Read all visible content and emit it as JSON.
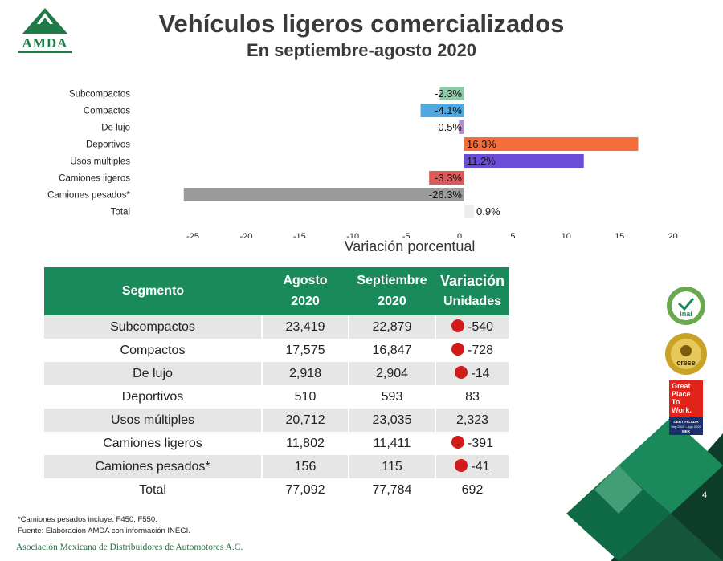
{
  "logo": {
    "text": "AMDA",
    "icon": "mountain-logo-icon",
    "color": "#1f7a47"
  },
  "title": "Vehículos ligeros comercializados",
  "subtitle": "En septiembre-agosto 2020",
  "chart_data": {
    "type": "bar",
    "orientation": "horizontal",
    "categories": [
      "Subcompactos",
      "Compactos",
      "De lujo",
      "Deportivos",
      "Usos múltiples",
      "Camiones ligeros",
      "Camiones pesados*",
      "Total"
    ],
    "values": [
      -2.3,
      -4.1,
      -0.5,
      16.3,
      11.2,
      -3.3,
      -26.3,
      0.9
    ],
    "value_labels": [
      "-2.3%",
      "-4.1%",
      "-0.5%",
      "16.3%",
      "11.2%",
      "-3.3%",
      "-26.3%",
      "0.9%"
    ],
    "colors": [
      "#8ec9a8",
      "#4fa8df",
      "#b48fcf",
      "#f56d3a",
      "#6a4ed8",
      "#dd5a5a",
      "#9a9a9a",
      "#eeeeee"
    ],
    "xlim": [
      -25,
      20
    ],
    "xticks": [
      "-25",
      "-20",
      "-15",
      "-10",
      "-5",
      "0",
      "5",
      "10",
      "15",
      "20"
    ],
    "xtick_values": [
      -25,
      -20,
      -15,
      -10,
      -5,
      0,
      5,
      10,
      15,
      20
    ],
    "xlabel": "Variación porcentual",
    "grid": false,
    "legend": "none"
  },
  "table": {
    "headers": [
      {
        "l1": "Segmento",
        "l2": ""
      },
      {
        "l1": "Agosto",
        "l2": "2020"
      },
      {
        "l1": "Septiembre",
        "l2": "2020"
      },
      {
        "l1": "Variación",
        "l2": "Unidades"
      }
    ],
    "rows": [
      {
        "segment": "Subcompactos",
        "ago": "23,419",
        "sep": "22,879",
        "var": "-540",
        "negative": true
      },
      {
        "segment": "Compactos",
        "ago": "17,575",
        "sep": "16,847",
        "var": "-728",
        "negative": true
      },
      {
        "segment": "De lujo",
        "ago": "2,918",
        "sep": "2,904",
        "var": "-14",
        "negative": true
      },
      {
        "segment": "Deportivos",
        "ago": "510",
        "sep": "593",
        "var": "83",
        "negative": false
      },
      {
        "segment": "Usos múltiples",
        "ago": "20,712",
        "sep": "23,035",
        "var": "2,323",
        "negative": false
      },
      {
        "segment": "Camiones ligeros",
        "ago": "11,802",
        "sep": "11,411",
        "var": "-391",
        "negative": true
      },
      {
        "segment": "Camiones pesados*",
        "ago": "156",
        "sep": "115",
        "var": "-41",
        "negative": true
      },
      {
        "segment": "Total",
        "ago": "77,092",
        "sep": "77,784",
        "var": "692",
        "negative": false
      }
    ],
    "header_color": "#1b8a5a",
    "negative_dot_color": "#d11a1a"
  },
  "notes": {
    "note1": "*Camiones pesados incluye: F450, F550.",
    "note2": "Fuente: Elaboración AMDA con información INEGI."
  },
  "footer": "Asociación Mexicana de Distribuidores de Automotores A.C.",
  "badges": [
    {
      "icon": "inai-badge-icon",
      "text": "inai"
    },
    {
      "icon": "crese-badge-icon",
      "text": "crese"
    },
    {
      "icon": "great-place-to-work-badge-icon",
      "lines": [
        "Great",
        "Place",
        "To",
        "Work."
      ],
      "sub": "CERTIFICADA",
      "sub2": "Sep 2019 - Ago 2020",
      "country": "MEX"
    }
  ],
  "page_number": "4"
}
